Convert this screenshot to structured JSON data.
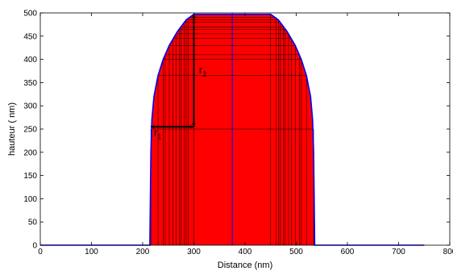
{
  "chart_data": {
    "type": "area",
    "xlabel": "Distance (nm)",
    "ylabel": "hauteur ( nm)",
    "xlim": [
      0,
      800
    ],
    "ylim": [
      0,
      500
    ],
    "x_ticks": [
      0,
      100,
      200,
      300,
      400,
      500,
      600,
      700,
      800
    ],
    "x_tick_labels": [
      "0",
      "100",
      "200",
      "300",
      "400",
      "500",
      "600",
      "700",
      "800"
    ],
    "y_ticks": [
      0,
      50,
      100,
      150,
      200,
      250,
      300,
      350,
      400,
      450,
      500
    ],
    "y_tick_labels": [
      "0",
      "50",
      "100",
      "150",
      "200",
      "250",
      "300",
      "350",
      "400",
      "450",
      "500"
    ],
    "grid": false,
    "fill_color": "#ff0000",
    "line_color": "#0000ff",
    "series": [
      {
        "x": [
          0,
          214,
          216,
          218,
          222,
          230,
          240,
          252,
          268,
          285,
          300,
          375,
          450,
          465,
          482,
          498,
          510,
          520,
          528,
          532,
          534,
          536,
          750
        ],
        "y": [
          0,
          0,
          200,
          270,
          320,
          365,
          400,
          430,
          460,
          485,
          497,
          497,
          497,
          485,
          460,
          430,
          400,
          365,
          320,
          270,
          200,
          0,
          0
        ]
      }
    ],
    "layers": [
      {
        "y": 250,
        "x_left": 216,
        "x_right": 534
      },
      {
        "y": 365,
        "x_left": 230,
        "x_right": 520
      },
      {
        "y": 400,
        "x_left": 240,
        "x_right": 510
      },
      {
        "y": 410,
        "x_left": 244,
        "x_right": 506
      },
      {
        "y": 430,
        "x_left": 252,
        "x_right": 498
      },
      {
        "y": 445,
        "x_left": 259,
        "x_right": 491
      },
      {
        "y": 455,
        "x_left": 265,
        "x_right": 485
      },
      {
        "y": 465,
        "x_left": 272,
        "x_right": 478
      },
      {
        "y": 470,
        "x_left": 275,
        "x_right": 475
      },
      {
        "y": 480,
        "x_left": 281,
        "x_right": 469
      },
      {
        "y": 485,
        "x_left": 285,
        "x_right": 465
      },
      {
        "y": 490,
        "x_left": 289,
        "x_right": 461
      },
      {
        "y": 497,
        "x_left": 300,
        "x_right": 450
      }
    ],
    "center_x": 375,
    "annotations": [
      {
        "label": "r",
        "subscript": "1",
        "from": [
          216,
          255
        ],
        "to": [
          300,
          255
        ],
        "label_at": [
          222,
          235
        ]
      },
      {
        "label": "r",
        "subscript": "2",
        "from": [
          300,
          255
        ],
        "to": [
          300,
          497
        ],
        "label_at": [
          310,
          370
        ]
      }
    ]
  }
}
